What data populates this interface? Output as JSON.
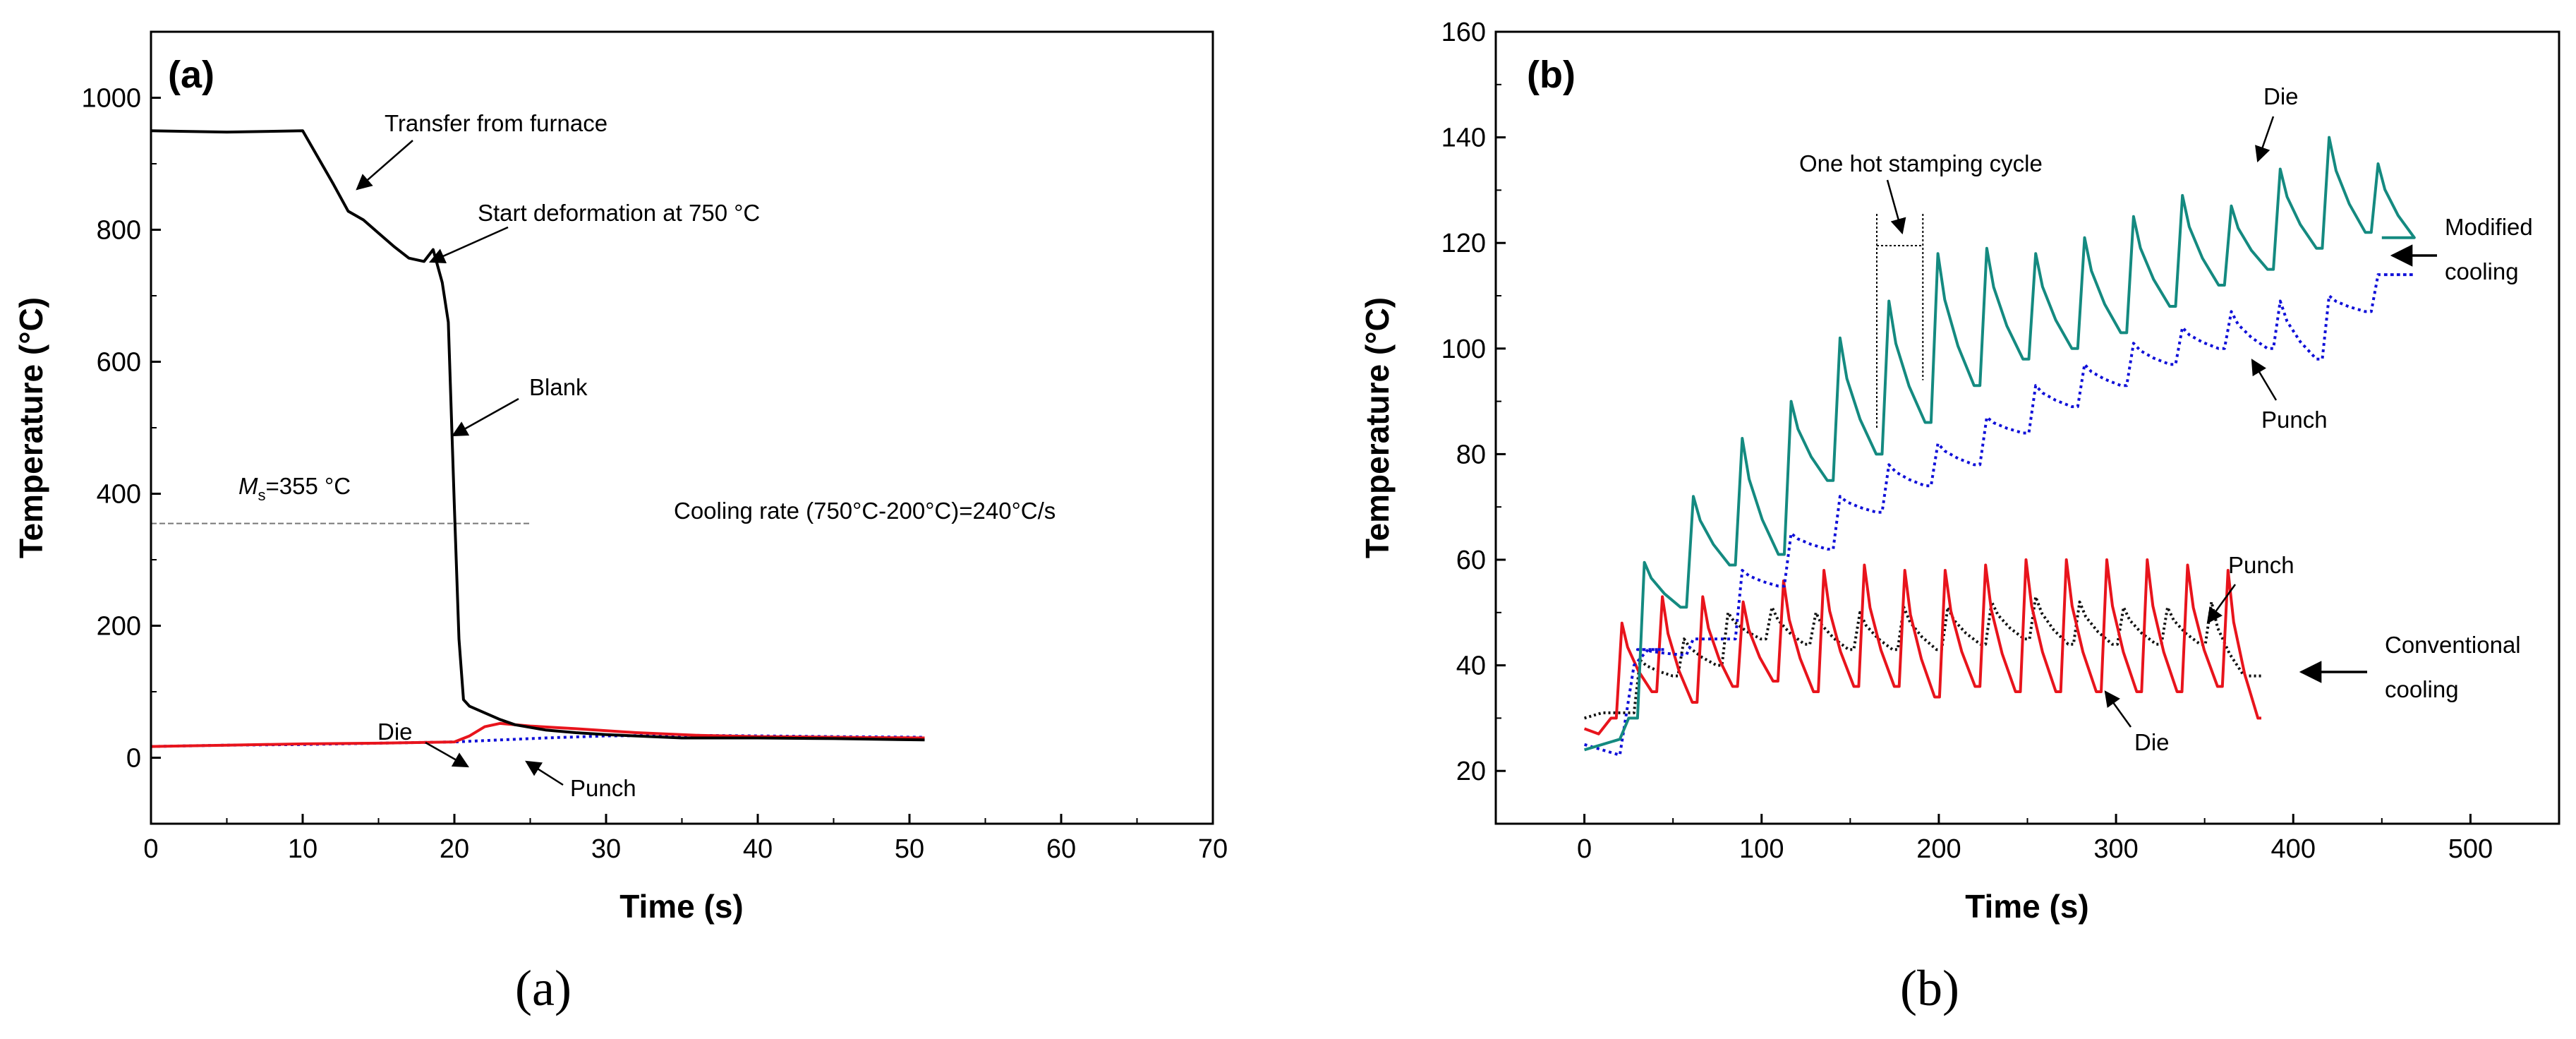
{
  "chart_data": [
    {
      "type": "line",
      "panel_label": "(a)",
      "caption": "(a)",
      "xlabel": "Time (s)",
      "ylabel": "Temperature (°C)",
      "xlim": [
        0,
        70
      ],
      "ylim": [
        -100,
        1100
      ],
      "x_ticks": [
        0,
        10,
        20,
        30,
        40,
        50,
        60,
        70
      ],
      "y_ticks": [
        0,
        200,
        400,
        600,
        800,
        1000
      ],
      "series": [
        {
          "name": "Blank",
          "color": "#000000",
          "dash": "",
          "points": [
            [
              0,
              950
            ],
            [
              5,
              948
            ],
            [
              10,
              950
            ],
            [
              11,
              910
            ],
            [
              12,
              870
            ],
            [
              13,
              828
            ],
            [
              14,
              815
            ],
            [
              15,
              795
            ],
            [
              16,
              775
            ],
            [
              17,
              757
            ],
            [
              18,
              752
            ],
            [
              18.6,
              770
            ],
            [
              19.2,
              720
            ],
            [
              19.6,
              660
            ],
            [
              20,
              380
            ],
            [
              20.3,
              180
            ],
            [
              20.6,
              88
            ],
            [
              21,
              78
            ],
            [
              22,
              68
            ],
            [
              23,
              58
            ],
            [
              24,
              50
            ],
            [
              26,
              42
            ],
            [
              28,
              38
            ],
            [
              30,
              35
            ],
            [
              35,
              30
            ],
            [
              40,
              30
            ],
            [
              45,
              29
            ],
            [
              51,
              27
            ]
          ]
        },
        {
          "name": "Die",
          "color": "#e8141c",
          "dash": "",
          "points": [
            [
              0,
              17
            ],
            [
              5,
              19
            ],
            [
              10,
              21
            ],
            [
              15,
              22
            ],
            [
              20,
              24
            ],
            [
              21,
              33
            ],
            [
              22,
              47
            ],
            [
              23,
              52
            ],
            [
              25,
              48
            ],
            [
              28,
              44
            ],
            [
              32,
              38
            ],
            [
              36,
              34
            ],
            [
              40,
              32
            ],
            [
              45,
              31
            ],
            [
              51,
              30
            ]
          ]
        },
        {
          "name": "Punch",
          "color": "#1010d8",
          "dash": "4 5",
          "points": [
            [
              0,
              17
            ],
            [
              5,
              19
            ],
            [
              10,
              20
            ],
            [
              15,
              22
            ],
            [
              20,
              24
            ],
            [
              23,
              27
            ],
            [
              26,
              30
            ],
            [
              30,
              33
            ],
            [
              35,
              34
            ],
            [
              40,
              33
            ],
            [
              45,
              32
            ],
            [
              51,
              31
            ]
          ]
        }
      ],
      "reference_line": {
        "label_base": "M",
        "label_sub": "s",
        "label_rest": "=355 °C",
        "value": 355,
        "x_range": [
          0,
          25
        ]
      },
      "annotations": [
        {
          "text": "Transfer from furnace"
        },
        {
          "text": "Start deformation at 750 °C"
        },
        {
          "text": "Blank"
        },
        {
          "text": "Cooling rate (750°C-200°C)=240°C/s"
        },
        {
          "text": "Die"
        },
        {
          "text": "Punch"
        }
      ]
    },
    {
      "type": "line",
      "panel_label": "(b)",
      "caption": "(b)",
      "xlabel": "Time (s)",
      "ylabel": "Temperature (°C)",
      "xlim": [
        -50,
        550
      ],
      "ylim": [
        10,
        160
      ],
      "x_ticks": [
        0,
        100,
        200,
        300,
        400,
        500
      ],
      "y_ticks": [
        20,
        40,
        60,
        80,
        100,
        120,
        140,
        160
      ],
      "series": [
        {
          "name": "Die (modified cooling)",
          "color": "#148a80",
          "dash": "",
          "cycle": {
            "t0": 30,
            "period": 27.6,
            "count": 16,
            "t_end": 450
          },
          "start": [
            [
              0,
              24
            ],
            [
              10,
              25
            ],
            [
              20,
              26
            ],
            [
              25,
              30
            ]
          ],
          "peaks": [
            59.5,
            72,
            83,
            90,
            102,
            109,
            118,
            119,
            118,
            121,
            125,
            129,
            127,
            134,
            140,
            135
          ],
          "troughs": [
            51,
            59,
            61,
            75,
            80,
            86,
            93,
            98,
            100,
            103,
            108,
            112,
            115,
            119,
            122,
            121
          ]
        },
        {
          "name": "Punch (modified cooling)",
          "color": "#1010d8",
          "dash": "4 5",
          "cycle": {
            "t0": 30,
            "period": 27.6,
            "count": 16,
            "t_end": 450
          },
          "start": [
            [
              0,
              25
            ],
            [
              20,
              23
            ],
            [
              28,
              40
            ],
            [
              36,
              43
            ],
            [
              45,
              43
            ]
          ],
          "peaks": [
            43,
            45,
            58,
            65,
            72,
            78,
            82,
            87,
            93,
            97,
            101,
            104,
            107,
            109,
            110,
            114
          ],
          "troughs": [
            42,
            45,
            55,
            62,
            69,
            74,
            78,
            84,
            89,
            93,
            97,
            100,
            100,
            98,
            107,
            114
          ]
        },
        {
          "name": "Die (conventional cooling)",
          "color": "#e8141c",
          "dash": "",
          "cycle": {
            "t0": 18,
            "period": 22.8,
            "count": 16,
            "t_end": 382
          },
          "start": [
            [
              0,
              28
            ],
            [
              8,
              27
            ],
            [
              15,
              30
            ]
          ],
          "peaks": [
            48,
            53,
            53,
            52,
            56,
            58,
            59,
            58,
            58,
            59,
            60,
            60,
            60,
            60,
            59,
            58
          ],
          "troughs": [
            35,
            33,
            36,
            37,
            35,
            36,
            36,
            34,
            36,
            35,
            35,
            35,
            35,
            35,
            36,
            30
          ]
        },
        {
          "name": "Punch (conventional cooling)",
          "color": "#111111",
          "dash": "3 4",
          "cycle": {
            "t0": 28,
            "period": 24.8,
            "count": 14,
            "t_end": 382
          },
          "start": [
            [
              0,
              30
            ],
            [
              10,
              31
            ],
            [
              20,
              31
            ]
          ],
          "peaks": [
            41,
            45,
            50,
            51,
            50,
            50,
            51,
            51,
            52,
            53,
            52,
            51,
            51,
            52
          ],
          "troughs": [
            38,
            40,
            45,
            44,
            43,
            43,
            43,
            44,
            45,
            44,
            44,
            44,
            44,
            38
          ]
        }
      ],
      "cycle_marker": {
        "t_start": 165,
        "t_end": 191
      },
      "annotations": [
        {
          "text": "Die"
        },
        {
          "text": "One hot stamping cycle"
        },
        {
          "text": "Modified"
        },
        {
          "text": "cooling"
        },
        {
          "text": "Punch"
        },
        {
          "text": "Punch"
        },
        {
          "text": "Conventional"
        },
        {
          "text": "cooling"
        },
        {
          "text": "Die"
        }
      ]
    }
  ]
}
